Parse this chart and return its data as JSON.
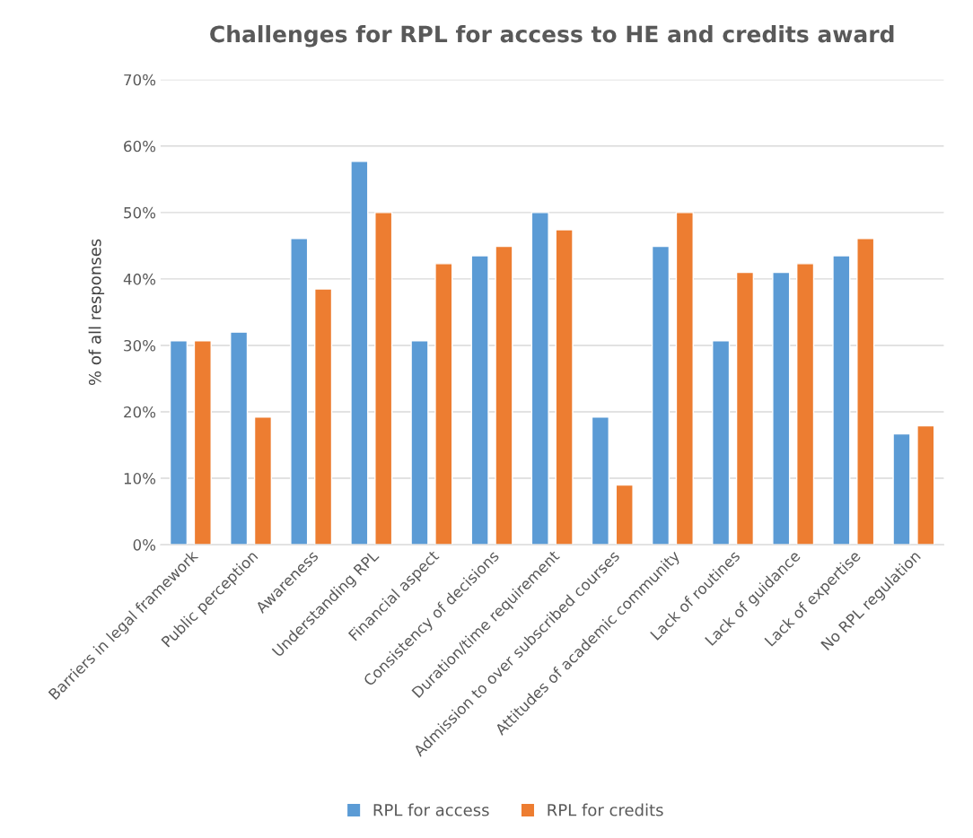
{
  "chart_data": {
    "type": "bar",
    "title": "Challenges for RPL for access to HE and credits award",
    "ylabel": "% of all responses",
    "categories": [
      "Barriers in legal framework",
      "Public perception",
      "Awareness",
      "Understanding RPL",
      "Financial aspect",
      "Consistency of decisions",
      "Duration/time requirement",
      "Admission to over subscribed courses",
      "Attitudes of academic community",
      "Lack of routines",
      "Lack of guidance",
      "Lack of expertise",
      "No RPL regulation"
    ],
    "series": [
      {
        "name": "RPL for access",
        "color": "#5b9bd5",
        "values": [
          30.7,
          32.0,
          46.1,
          57.7,
          30.7,
          43.5,
          50.0,
          19.2,
          44.9,
          30.7,
          41.0,
          43.5,
          16.7
        ]
      },
      {
        "name": "RPL for credits",
        "color": "#ed7d31",
        "values": [
          30.7,
          19.2,
          38.5,
          50.0,
          42.3,
          44.9,
          47.4,
          9.0,
          50.0,
          41.0,
          42.3,
          46.1,
          17.9
        ]
      }
    ],
    "ylim": [
      0,
      70
    ],
    "yticks": [
      {
        "value": 0,
        "label": "0%"
      },
      {
        "value": 10,
        "label": "10%"
      },
      {
        "value": 20,
        "label": "20%"
      },
      {
        "value": 30,
        "label": "30%"
      },
      {
        "value": 40,
        "label": "40%"
      },
      {
        "value": 50,
        "label": "50%"
      },
      {
        "value": 60,
        "label": "60%"
      },
      {
        "value": 70,
        "label": "70%"
      }
    ],
    "grid": "y",
    "legend": "bottom"
  }
}
